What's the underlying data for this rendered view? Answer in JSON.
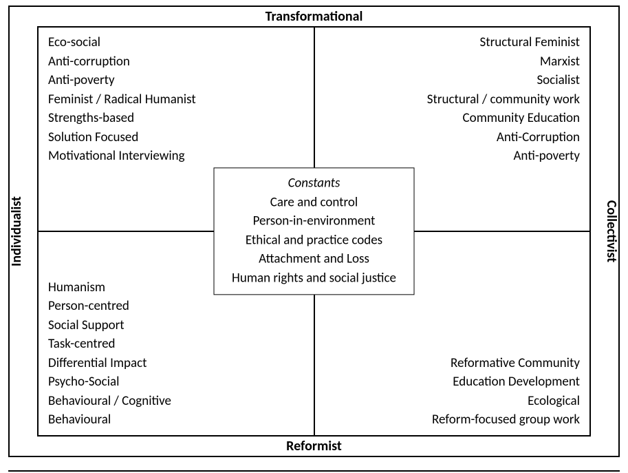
{
  "diagram": {
    "type": "quadrant",
    "background_color": "#ffffff",
    "border_color": "#000000",
    "text_color": "#000000",
    "font_family": "Calibri, Arial, sans-serif",
    "body_fontsize_pt": 14,
    "axis_fontsize_pt": 15,
    "axis_fontweight": "bold",
    "axes": {
      "top": "Transformational",
      "bottom": "Reformist",
      "left": "Individualist",
      "right": "Collectivist"
    },
    "quadrants": {
      "top_left": {
        "align": "left",
        "items": [
          "Eco-social",
          "Anti-corruption",
          "Anti-poverty",
          "Feminist / Radical Humanist",
          "Strengths-based",
          "Solution Focused",
          "Motivational Interviewing"
        ]
      },
      "top_right": {
        "align": "right",
        "items": [
          "Structural Feminist",
          "Marxist",
          "Socialist",
          "Structural / community work",
          "Community Education",
          "Anti-Corruption",
          "Anti-poverty"
        ]
      },
      "bottom_left": {
        "align": "left",
        "items": [
          "Humanism",
          "Person-centred",
          "Social Support",
          "Task-centred",
          "Differential Impact",
          "Psycho-Social",
          "Behavioural / Cognitive",
          "Behavioural"
        ]
      },
      "bottom_right": {
        "align": "right",
        "items": [
          "Reformative Community",
          "Education Development",
          "Ecological",
          "Reform-focused group work"
        ]
      }
    },
    "center": {
      "title": "Constants",
      "title_style": "italic",
      "items": [
        "Care and control",
        "Person-in-environment",
        "Ethical and practice codes",
        "Attachment and Loss",
        "Human rights and social justice"
      ],
      "border_color": "#000000",
      "background_color": "#ffffff"
    }
  }
}
